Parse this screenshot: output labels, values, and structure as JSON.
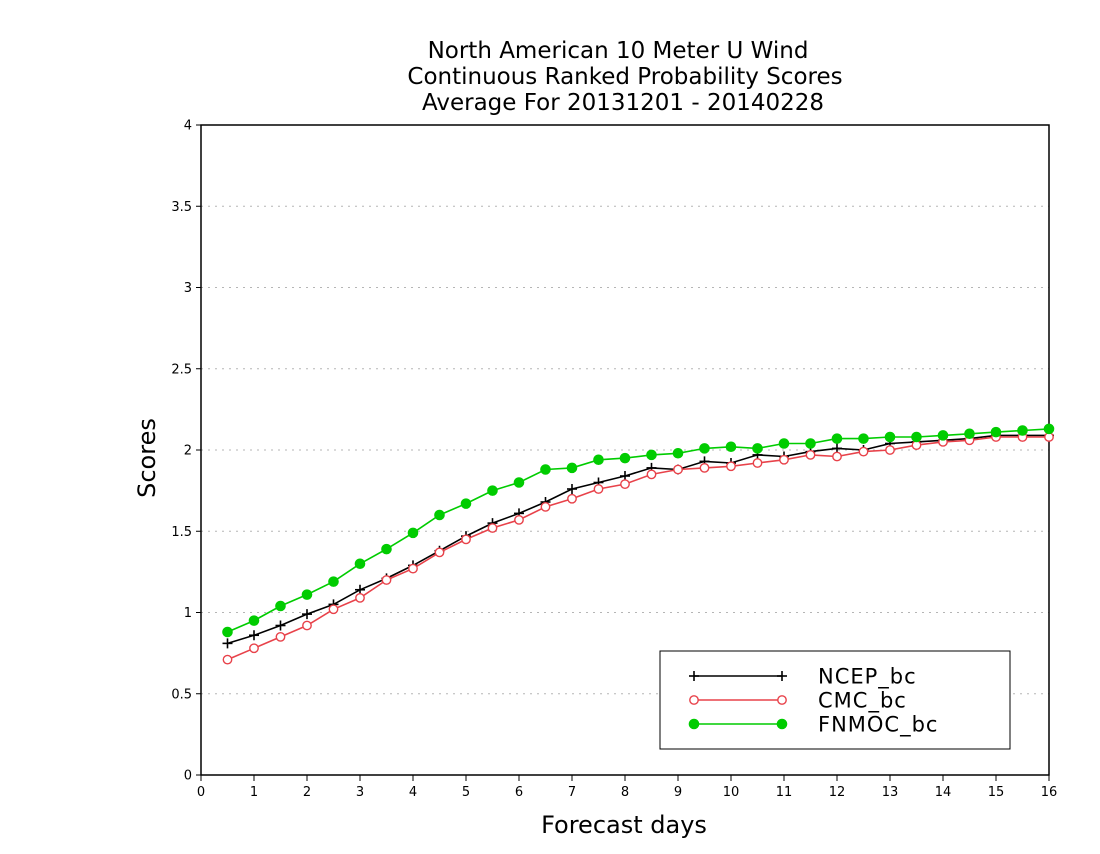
{
  "chart_data": {
    "type": "line",
    "title": [
      "North American 10 Meter U Wind",
      "Continuous Ranked Probability Scores",
      "Average For 20131201 - 20140228"
    ],
    "xlabel": "Forecast days",
    "ylabel": "Scores",
    "xlim": [
      0,
      16
    ],
    "ylim": [
      0,
      4
    ],
    "x_ticks": [
      "0",
      "1",
      "2",
      "3",
      "4",
      "5",
      "6",
      "7",
      "8",
      "9",
      "10",
      "11",
      "12",
      "13",
      "14",
      "15",
      "16"
    ],
    "y_ticks": [
      "0",
      "0.5",
      "1",
      "1.5",
      "2",
      "2.5",
      "3",
      "3.5",
      "4"
    ],
    "y_grid": true,
    "legend_position": "bottom-right",
    "x": [
      0.5,
      1,
      1.5,
      2,
      2.5,
      3,
      3.5,
      4,
      4.5,
      5,
      5.5,
      6,
      6.5,
      7,
      7.5,
      8,
      8.5,
      9,
      9.5,
      10,
      10.5,
      11,
      11.5,
      12,
      12.5,
      13,
      13.5,
      14,
      14.5,
      15,
      15.5,
      16
    ],
    "series": [
      {
        "name": "NCEP_bc",
        "color": "#000000",
        "marker": "plus",
        "values": [
          0.81,
          0.86,
          0.92,
          0.99,
          1.05,
          1.14,
          1.21,
          1.29,
          1.38,
          1.47,
          1.55,
          1.61,
          1.68,
          1.76,
          1.8,
          1.84,
          1.89,
          1.88,
          1.93,
          1.92,
          1.97,
          1.96,
          1.99,
          2.01,
          2.0,
          2.04,
          2.05,
          2.06,
          2.07,
          2.09,
          2.09,
          2.09
        ]
      },
      {
        "name": "CMC_bc",
        "color": "#e8424a",
        "marker": "open-circle",
        "values": [
          0.71,
          0.78,
          0.85,
          0.92,
          1.02,
          1.09,
          1.2,
          1.27,
          1.37,
          1.45,
          1.52,
          1.57,
          1.65,
          1.7,
          1.76,
          1.79,
          1.85,
          1.88,
          1.89,
          1.9,
          1.92,
          1.94,
          1.97,
          1.96,
          1.99,
          2.0,
          2.03,
          2.05,
          2.06,
          2.08,
          2.08,
          2.08
        ]
      },
      {
        "name": "FNMOC_bc",
        "color": "#00cc00",
        "marker": "filled-circle",
        "values": [
          0.88,
          0.95,
          1.04,
          1.11,
          1.19,
          1.3,
          1.39,
          1.49,
          1.6,
          1.67,
          1.75,
          1.8,
          1.88,
          1.89,
          1.94,
          1.95,
          1.97,
          1.98,
          2.01,
          2.02,
          2.01,
          2.04,
          2.04,
          2.07,
          2.07,
          2.08,
          2.08,
          2.09,
          2.1,
          2.11,
          2.12,
          2.13
        ]
      }
    ]
  }
}
